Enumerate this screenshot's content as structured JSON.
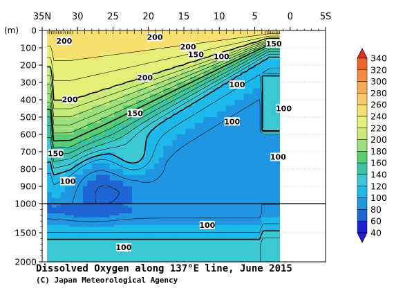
{
  "chart_data": {
    "type": "heatmap",
    "title": "Dissolved Oxygen along 137°E line, June 2015",
    "credit": "(C) Japan Meteorological Agency",
    "x": {
      "labels": [
        "35N",
        "30",
        "25",
        "20",
        "15",
        "10",
        "5",
        "0",
        "5S"
      ],
      "label_values": [
        35,
        30,
        25,
        20,
        15,
        10,
        5,
        0,
        -5
      ],
      "range": [
        35,
        -5
      ],
      "data_extent": [
        34.3,
        1.5
      ]
    },
    "y": {
      "unit_label": "(m)",
      "labels_upper": [
        "0",
        "100",
        "200",
        "300",
        "400",
        "500",
        "600",
        "700",
        "800",
        "900",
        "1000"
      ],
      "labels_lower": [
        "1500",
        "2000"
      ],
      "range": [
        0,
        2000
      ],
      "scale_break_depth": 1000
    },
    "colorbar": {
      "levels": [
        "340",
        "320",
        "300",
        "280",
        "260",
        "240",
        "220",
        "200",
        "180",
        "160",
        "140",
        "120",
        "100",
        "80",
        "60",
        "40"
      ],
      "colors": [
        "#e8321e",
        "#f06428",
        "#f58c3c",
        "#f8aa50",
        "#fac864",
        "#f8e070",
        "#e6f078",
        "#c8eb78",
        "#9be07d",
        "#5acd73",
        "#3cc3a0",
        "#3cc8d2",
        "#1eb9eb",
        "#1e96e1",
        "#1e64d2",
        "#1e1ed2"
      ]
    },
    "contour_labels": [
      {
        "text": "200",
        "lat": 31.9,
        "depth": 60
      },
      {
        "text": "200",
        "lat": 19.1,
        "depth": 38
      },
      {
        "text": "200",
        "lat": 14.4,
        "depth": 94
      },
      {
        "text": "200",
        "lat": 20.5,
        "depth": 272
      },
      {
        "text": "200",
        "lat": 31.1,
        "depth": 398
      },
      {
        "text": "150",
        "lat": 2.3,
        "depth": 75
      },
      {
        "text": "150",
        "lat": 13.3,
        "depth": 138
      },
      {
        "text": "150",
        "lat": 21.9,
        "depth": 477
      },
      {
        "text": "150",
        "lat": 33.1,
        "depth": 710
      },
      {
        "text": "100",
        "lat": 9.7,
        "depth": 150
      },
      {
        "text": "100",
        "lat": 7.5,
        "depth": 312
      },
      {
        "text": "100",
        "lat": 0.9,
        "depth": 450
      },
      {
        "text": "100",
        "lat": 8.2,
        "depth": 525
      },
      {
        "text": "100",
        "lat": 1.7,
        "depth": 730
      },
      {
        "text": "100",
        "lat": 31.4,
        "depth": 870
      },
      {
        "text": "100",
        "lat": 11.7,
        "depth": 1368
      },
      {
        "text": "100",
        "lat": 23.5,
        "depth": 1750
      }
    ]
  }
}
